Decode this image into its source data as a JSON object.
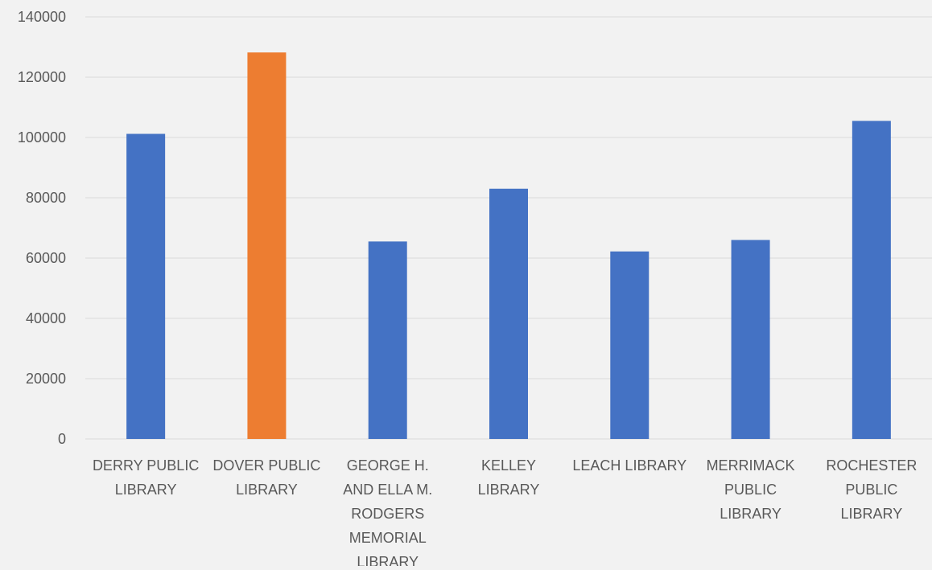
{
  "chart_data": {
    "type": "bar",
    "title": "",
    "xlabel": "",
    "ylabel": "",
    "categories": [
      [
        "DERRY PUBLIC",
        "LIBRARY"
      ],
      [
        "DOVER PUBLIC",
        "LIBRARY"
      ],
      [
        "GEORGE H.",
        "AND ELLA M.",
        "RODGERS",
        "MEMORIAL",
        "LIBRARY"
      ],
      [
        "KELLEY",
        "LIBRARY"
      ],
      [
        "LEACH LIBRARY"
      ],
      [
        "MERRIMACK",
        "PUBLIC",
        "LIBRARY"
      ],
      [
        "ROCHESTER",
        "PUBLIC",
        "LIBRARY"
      ]
    ],
    "values": [
      101200,
      128200,
      65500,
      83000,
      62200,
      66000,
      105500
    ],
    "bar_colors": [
      "#4472c4",
      "#ed7d31",
      "#4472c4",
      "#4472c4",
      "#4472c4",
      "#4472c4",
      "#4472c4"
    ],
    "ylim": [
      0,
      140000
    ],
    "yticks": [
      "0",
      "20000",
      "40000",
      "60000",
      "80000",
      "100000",
      "120000",
      "140000"
    ],
    "grid": true,
    "legend": "none"
  },
  "colors": {
    "background": "#f2f2f2",
    "gridline": "#d9d9d9",
    "axis_text": "#595959"
  }
}
